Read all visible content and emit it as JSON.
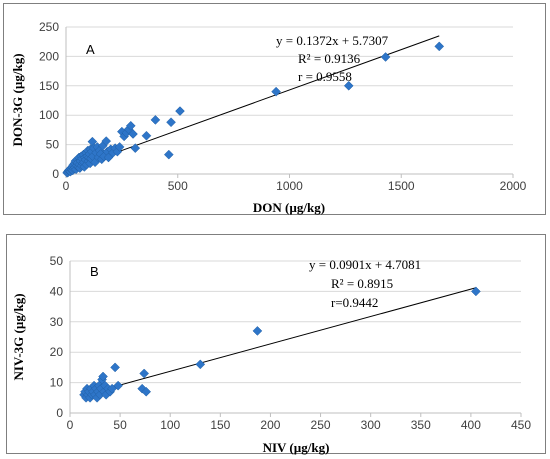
{
  "chart_data": [
    {
      "type": "scatter",
      "panel_label": "A",
      "xlabel": "DON (µg/kg)",
      "ylabel": "DON-3G (µg/kg)",
      "xlim": [
        0,
        2000
      ],
      "ylim": [
        0,
        250
      ],
      "xticks": [
        0,
        500,
        1000,
        1500,
        2000
      ],
      "yticks": [
        0,
        50,
        100,
        150,
        200,
        250
      ],
      "grid": "horizontal",
      "annotations": [
        "y = 0.1372x + 5.7307",
        "R² = 0.9136",
        "r = 0.9558"
      ],
      "trendline": {
        "slope": 0.1372,
        "intercept": 5.7307,
        "x_range": [
          0,
          1670
        ]
      },
      "points": [
        [
          5,
          2
        ],
        [
          8,
          4
        ],
        [
          10,
          3
        ],
        [
          12,
          6
        ],
        [
          15,
          5
        ],
        [
          18,
          8
        ],
        [
          20,
          4
        ],
        [
          22,
          10
        ],
        [
          25,
          7
        ],
        [
          28,
          12
        ],
        [
          30,
          6
        ],
        [
          32,
          15
        ],
        [
          35,
          9
        ],
        [
          38,
          18
        ],
        [
          40,
          11
        ],
        [
          42,
          22
        ],
        [
          45,
          8
        ],
        [
          48,
          14
        ],
        [
          50,
          25
        ],
        [
          52,
          19
        ],
        [
          55,
          12
        ],
        [
          58,
          28
        ],
        [
          60,
          16
        ],
        [
          62,
          10
        ],
        [
          65,
          22
        ],
        [
          68,
          30
        ],
        [
          70,
          14
        ],
        [
          72,
          26
        ],
        [
          75,
          18
        ],
        [
          78,
          33
        ],
        [
          80,
          20
        ],
        [
          82,
          12
        ],
        [
          85,
          28
        ],
        [
          88,
          24
        ],
        [
          90,
          36
        ],
        [
          92,
          16
        ],
        [
          95,
          30
        ],
        [
          98,
          40
        ],
        [
          100,
          22
        ],
        [
          102,
          28
        ],
        [
          105,
          34
        ],
        [
          108,
          18
        ],
        [
          110,
          42
        ],
        [
          112,
          26
        ],
        [
          115,
          38
        ],
        [
          118,
          55
        ],
        [
          120,
          30
        ],
        [
          125,
          44
        ],
        [
          130,
          20
        ],
        [
          135,
          36
        ],
        [
          140,
          46
        ],
        [
          145,
          28
        ],
        [
          150,
          40
        ],
        [
          155,
          34
        ],
        [
          160,
          25
        ],
        [
          165,
          48
        ],
        [
          170,
          30
        ],
        [
          180,
          56
        ],
        [
          185,
          38
        ],
        [
          190,
          28
        ],
        [
          200,
          42
        ],
        [
          210,
          36
        ],
        [
          220,
          44
        ],
        [
          230,
          38
        ],
        [
          240,
          46
        ],
        [
          250,
          72
        ],
        [
          260,
          64
        ],
        [
          270,
          70
        ],
        [
          280,
          76
        ],
        [
          290,
          82
        ],
        [
          300,
          68
        ],
        [
          310,
          44
        ],
        [
          360,
          65
        ],
        [
          400,
          92
        ],
        [
          460,
          33
        ],
        [
          470,
          88
        ],
        [
          510,
          107
        ],
        [
          940,
          140
        ],
        [
          1265,
          150
        ],
        [
          1430,
          199
        ],
        [
          1670,
          217
        ]
      ]
    },
    {
      "type": "scatter",
      "panel_label": "B",
      "xlabel": "NIV (µg/kg)",
      "ylabel": "NIV-3G (µg/kg)",
      "xlim": [
        0,
        450
      ],
      "ylim": [
        0,
        50
      ],
      "xticks": [
        0,
        50,
        100,
        150,
        200,
        250,
        300,
        350,
        400,
        450
      ],
      "yticks": [
        0,
        10,
        20,
        30,
        40,
        50
      ],
      "grid": "horizontal",
      "annotations": [
        "y = 0.0901x + 4.7081",
        "R² = 0.8915",
        "r=0.9442"
      ],
      "trendline": {
        "slope": 0.0901,
        "intercept": 4.7081,
        "x_range": [
          12,
          405
        ]
      },
      "points": [
        [
          14,
          6
        ],
        [
          15,
          7
        ],
        [
          16,
          5
        ],
        [
          17,
          8
        ],
        [
          18,
          6
        ],
        [
          19,
          7
        ],
        [
          20,
          5
        ],
        [
          21,
          8
        ],
        [
          22,
          6
        ],
        [
          23,
          7
        ],
        [
          24,
          9
        ],
        [
          25,
          6
        ],
        [
          26,
          8
        ],
        [
          27,
          5
        ],
        [
          28,
          7
        ],
        [
          29,
          9
        ],
        [
          30,
          6
        ],
        [
          31,
          8
        ],
        [
          32,
          11
        ],
        [
          33,
          12
        ],
        [
          34,
          7
        ],
        [
          35,
          9
        ],
        [
          36,
          6
        ],
        [
          38,
          8
        ],
        [
          40,
          7
        ],
        [
          42,
          8
        ],
        [
          45,
          15
        ],
        [
          48,
          9
        ],
        [
          72,
          8
        ],
        [
          74,
          13
        ],
        [
          76,
          7
        ],
        [
          130,
          16
        ],
        [
          187,
          27
        ],
        [
          405,
          40
        ]
      ]
    }
  ]
}
